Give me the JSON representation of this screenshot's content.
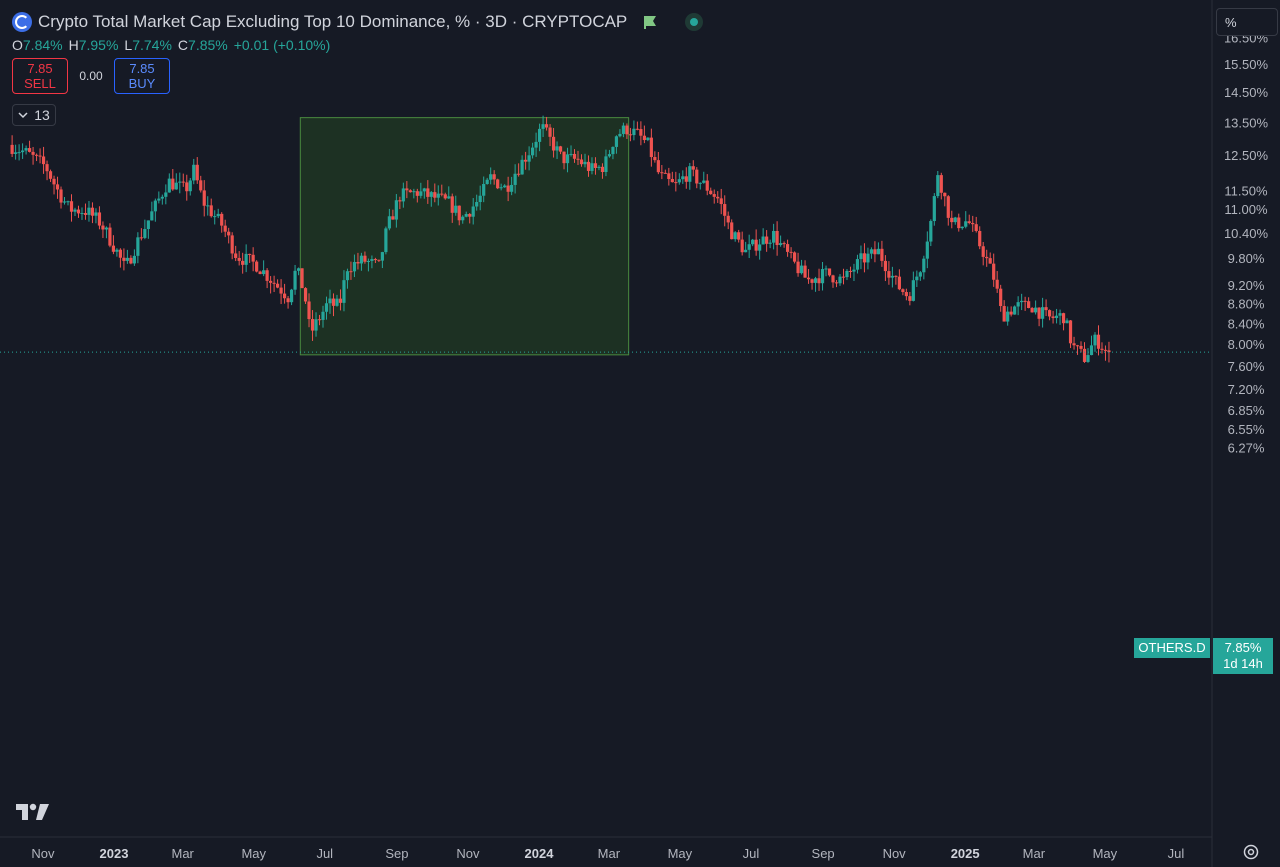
{
  "header": {
    "title": "Crypto Total Market Cap Excluding Top 10 Dominance, % · 3D · CRYPTOCAP",
    "ohlc": {
      "o_label": "O",
      "o": "7.84%",
      "h_label": "H",
      "h": "7.95%",
      "l_label": "L",
      "l": "7.74%",
      "c_label": "C",
      "c": "7.85%",
      "change": "+0.01 (+0.10%)"
    },
    "sell_price": "7.85",
    "sell_label": "SELL",
    "spread": "0.00",
    "buy_price": "7.85",
    "buy_label": "BUY",
    "indicators_count": "13"
  },
  "scale_mode": "%",
  "price_tag": {
    "symbol": "OTHERS.D",
    "value": "7.85%",
    "countdown": "1d 14h"
  },
  "icons": {
    "logo": "tradingview-logo-icon",
    "settings": "gear-icon",
    "flag": "flag-icon"
  },
  "colors": {
    "up": "#26a69a",
    "down": "#ef5350",
    "background": "#161a25",
    "highlight_box": "#1e3323"
  },
  "chart_data": {
    "type": "candlestick",
    "series_name": "OTHERS.D",
    "timeframe": "3D",
    "y_scale": "log",
    "y_ticks": [
      16.5,
      15.5,
      14.5,
      13.5,
      12.5,
      11.5,
      11.0,
      10.4,
      9.8,
      9.2,
      8.8,
      8.4,
      8.0,
      7.6,
      7.2,
      6.85,
      6.55,
      6.27
    ],
    "y_tick_labels": [
      "16.50%",
      "15.50%",
      "14.50%",
      "13.50%",
      "12.50%",
      "11.50%",
      "11.00%",
      "10.40%",
      "9.80%",
      "9.20%",
      "8.80%",
      "8.40%",
      "8.00%",
      "7.60%",
      "7.20%",
      "6.85%",
      "6.55%",
      "6.27%"
    ],
    "x_tick_labels": [
      "Nov",
      "2023",
      "Mar",
      "May",
      "Jul",
      "Sep",
      "Nov",
      "2024",
      "Mar",
      "May",
      "Jul",
      "Sep",
      "Nov",
      "2025",
      "Mar",
      "May",
      "Jul"
    ],
    "x_tick_bold": [
      "2023",
      "2024",
      "2025"
    ],
    "last_price": 7.85,
    "highlight_box": {
      "start": "2023-06-10",
      "end": "2024-03-18",
      "low": 7.8,
      "high": 13.65
    },
    "path": [
      [
        "2022-10-04",
        12.8
      ],
      [
        "2022-10-20",
        12.55
      ],
      [
        "2022-11-05",
        12.15
      ],
      [
        "2022-11-15",
        11.5
      ],
      [
        "2022-11-25",
        11.0
      ],
      [
        "2022-12-10",
        10.95
      ],
      [
        "2022-12-22",
        10.65
      ],
      [
        "2023-01-05",
        9.95
      ],
      [
        "2023-01-12",
        9.55
      ],
      [
        "2023-01-22",
        10.15
      ],
      [
        "2023-02-05",
        10.95
      ],
      [
        "2023-02-18",
        11.75
      ],
      [
        "2023-03-05",
        11.5
      ],
      [
        "2023-03-12",
        12.05
      ],
      [
        "2023-03-20",
        11.2
      ],
      [
        "2023-04-05",
        10.6
      ],
      [
        "2023-04-18",
        9.85
      ],
      [
        "2023-05-05",
        9.65
      ],
      [
        "2023-05-20",
        9.25
      ],
      [
        "2023-06-01",
        8.95
      ],
      [
        "2023-06-08",
        9.55
      ],
      [
        "2023-06-15",
        9.05
      ],
      [
        "2023-06-20",
        8.2
      ],
      [
        "2023-07-05",
        8.8
      ],
      [
        "2023-07-15",
        8.75
      ],
      [
        "2023-07-22",
        9.6
      ],
      [
        "2023-08-05",
        9.75
      ],
      [
        "2023-08-18",
        9.6
      ],
      [
        "2023-08-25",
        10.5
      ],
      [
        "2023-09-05",
        11.35
      ],
      [
        "2023-09-20",
        11.45
      ],
      [
        "2023-10-05",
        11.3
      ],
      [
        "2023-10-18",
        11.15
      ],
      [
        "2023-10-28",
        10.75
      ],
      [
        "2023-11-12",
        11.25
      ],
      [
        "2023-11-22",
        11.85
      ],
      [
        "2023-12-05",
        11.55
      ],
      [
        "2023-12-12",
        11.95
      ],
      [
        "2023-12-25",
        12.6
      ],
      [
        "2024-01-05",
        13.35
      ],
      [
        "2024-01-12",
        12.95
      ],
      [
        "2024-01-22",
        12.4
      ],
      [
        "2024-02-05",
        12.35
      ],
      [
        "2024-02-18",
        12.05
      ],
      [
        "2024-02-28",
        12.2
      ],
      [
        "2024-03-08",
        13.1
      ],
      [
        "2024-03-18",
        13.3
      ],
      [
        "2024-03-28",
        13.1
      ],
      [
        "2024-04-05",
        12.8
      ],
      [
        "2024-04-15",
        11.9
      ],
      [
        "2024-04-28",
        11.6
      ],
      [
        "2024-05-10",
        12.0
      ],
      [
        "2024-05-25",
        11.6
      ],
      [
        "2024-06-05",
        11.25
      ],
      [
        "2024-06-15",
        10.45
      ],
      [
        "2024-06-28",
        9.95
      ],
      [
        "2024-07-10",
        10.2
      ],
      [
        "2024-07-22",
        10.35
      ],
      [
        "2024-08-05",
        9.8
      ],
      [
        "2024-08-20",
        9.3
      ],
      [
        "2024-09-05",
        9.45
      ],
      [
        "2024-09-20",
        9.3
      ],
      [
        "2024-10-05",
        9.75
      ],
      [
        "2024-10-20",
        9.95
      ],
      [
        "2024-11-05",
        9.2
      ],
      [
        "2024-11-15",
        8.95
      ],
      [
        "2024-11-25",
        9.6
      ],
      [
        "2024-12-05",
        10.8
      ],
      [
        "2024-12-10",
        12.0
      ],
      [
        "2024-12-22",
        10.6
      ],
      [
        "2025-01-05",
        10.7
      ],
      [
        "2025-01-18",
        9.95
      ],
      [
        "2025-01-28",
        9.3
      ],
      [
        "2025-02-03",
        8.55
      ],
      [
        "2025-02-15",
        8.75
      ],
      [
        "2025-03-01",
        8.75
      ],
      [
        "2025-03-15",
        8.5
      ],
      [
        "2025-03-28",
        8.55
      ],
      [
        "2025-04-05",
        7.95
      ],
      [
        "2025-04-15",
        7.75
      ],
      [
        "2025-04-25",
        8.1
      ],
      [
        "2025-05-04",
        7.85
      ]
    ]
  }
}
